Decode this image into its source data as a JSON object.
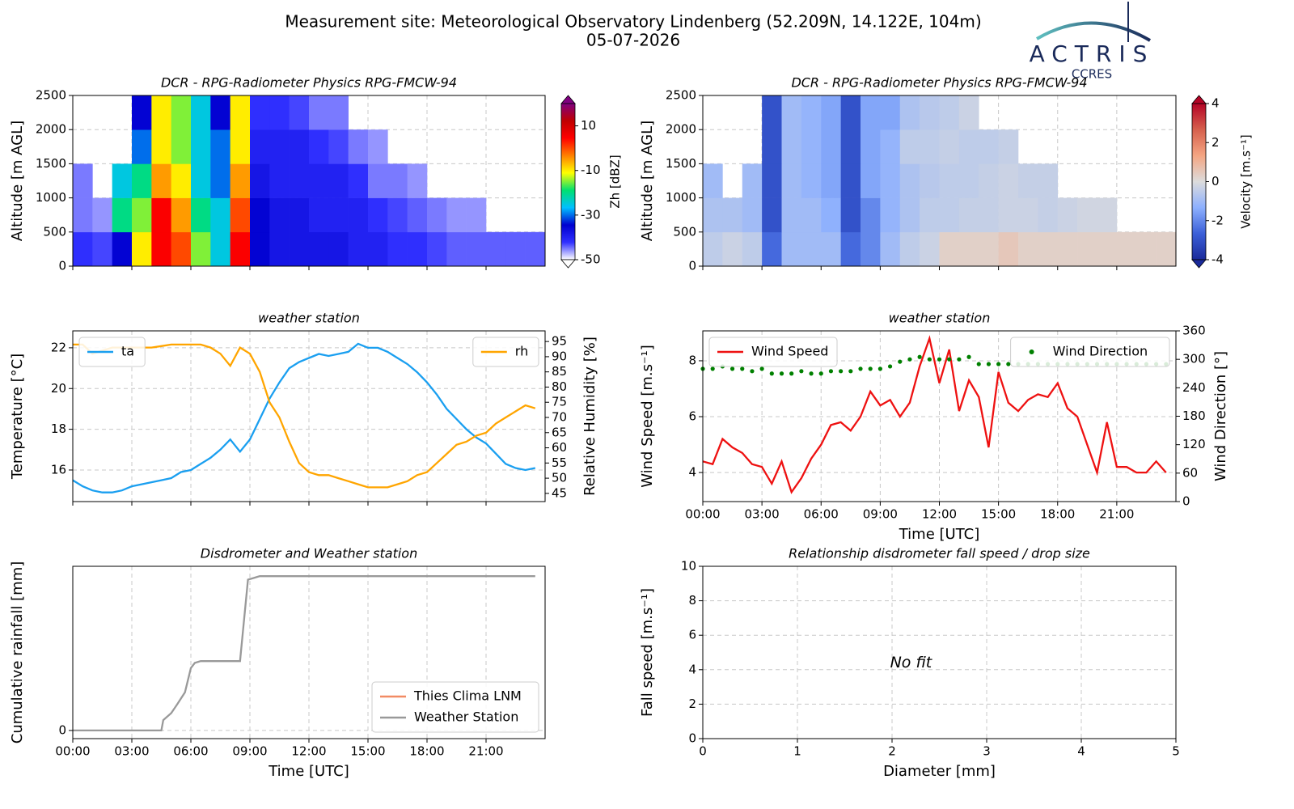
{
  "header": {
    "title": "Measurement site: Meteorological Observatory Lindenberg (52.209N, 14.122E, 104m)",
    "date": "05-07-2026",
    "logo": "ACTRIS",
    "logo_sub": "CCRES"
  },
  "chart_data": [
    {
      "type": "heatmap",
      "title": "DCR - RPG-Radiometer Physics RPG-FMCW-94",
      "ylabel": "Altitude [m AGL]",
      "x": [
        0.5,
        1.5,
        2.5,
        3.5,
        4.5,
        5.5,
        6.5,
        7.5,
        8.5,
        9.5,
        10.5,
        11.5,
        12.5,
        13.5,
        14.5,
        15.5,
        16.5,
        17.5,
        18.5,
        19.5,
        20.5,
        21.5,
        22.5,
        23.5
      ],
      "y": [
        250,
        750,
        1250,
        1750,
        2250
      ],
      "z": [
        [
          -42,
          -43,
          -35,
          -10,
          5,
          0,
          -15,
          -25,
          5,
          -35,
          -38,
          -38,
          -38,
          -38,
          -40,
          -40,
          -42,
          -42,
          -43,
          -44,
          -44,
          -44,
          -44,
          -44
        ],
        [
          -45,
          -46,
          -20,
          -15,
          5,
          -5,
          -20,
          -25,
          0,
          -35,
          -38,
          -38,
          -40,
          -40,
          -40,
          -42,
          -43,
          -44,
          -45,
          -46,
          -46,
          null,
          null,
          null
        ],
        [
          -45,
          null,
          -25,
          -20,
          -5,
          -10,
          -25,
          -30,
          -5,
          -38,
          -40,
          -40,
          -40,
          -40,
          -42,
          -45,
          -45,
          -46,
          null,
          null,
          null,
          null,
          null,
          null
        ],
        [
          null,
          null,
          null,
          -30,
          -10,
          -15,
          -25,
          -30,
          -10,
          -40,
          -40,
          -40,
          -42,
          -43,
          -45,
          -46,
          null,
          null,
          null,
          null,
          null,
          null,
          null,
          null
        ],
        [
          null,
          null,
          null,
          -35,
          -10,
          -15,
          -25,
          -35,
          -10,
          -42,
          -42,
          -43,
          -45,
          -45,
          null,
          null,
          null,
          null,
          null,
          null,
          null,
          null,
          null,
          null
        ]
      ],
      "xlim": [
        0,
        24
      ],
      "ylim": [
        0,
        2500
      ],
      "xticks": [
        0,
        3,
        6,
        9,
        12,
        15,
        18,
        21
      ],
      "xtick_labels": false,
      "yticks": [
        0,
        500,
        1000,
        1500,
        2000,
        2500
      ],
      "grid": true,
      "colorbar": {
        "label": "Zh [dBZ]",
        "clim": [
          -50,
          20
        ],
        "ticks": [
          -50,
          -30,
          -10,
          10
        ],
        "colors": [
          "#ffffff",
          "#3030ff",
          "#0000d0",
          "#00c0ff",
          "#00e070",
          "#ffff00",
          "#ff8000",
          "#ff0000",
          "#c00000",
          "#800080"
        ]
      }
    },
    {
      "type": "heatmap",
      "title": "DCR - RPG-Radiometer Physics RPG-FMCW-94",
      "ylabel": "Altitude [m AGL]",
      "x": [
        0.5,
        1.5,
        2.5,
        3.5,
        4.5,
        5.5,
        6.5,
        7.5,
        8.5,
        9.5,
        10.5,
        11.5,
        12.5,
        13.5,
        14.5,
        15.5,
        16.5,
        17.5,
        18.5,
        19.5,
        20.5,
        21.5,
        22.5,
        23.5
      ],
      "y": [
        250,
        750,
        1250,
        1750,
        2250
      ],
      "z": [
        [
          -0.5,
          -0.3,
          -0.5,
          -2.5,
          -1,
          -1,
          -1,
          -2.5,
          -2,
          -1,
          -0.5,
          -0.3,
          0.3,
          0.3,
          0.3,
          0.5,
          0.3,
          0.3,
          0.3,
          0.3,
          0.3,
          0.3,
          0.3,
          0.3
        ],
        [
          -0.8,
          -0.8,
          -1,
          -3,
          -1,
          -1,
          -1.3,
          -3,
          -2,
          -1.2,
          -0.8,
          -0.5,
          -0.5,
          -0.4,
          -0.4,
          -0.3,
          -0.3,
          -0.4,
          -0.3,
          -0.2,
          -0.2,
          null,
          null,
          null
        ],
        [
          -1,
          null,
          -1,
          -3,
          -1,
          -1.2,
          -1.5,
          -3,
          -1.5,
          -1.2,
          -0.8,
          -0.6,
          -0.5,
          -0.5,
          -0.4,
          -0.3,
          -0.4,
          -0.4,
          null,
          null,
          null,
          null,
          null,
          null
        ],
        [
          null,
          null,
          null,
          -3,
          -1,
          -1.2,
          -1.5,
          -3,
          -1.5,
          -1.2,
          -0.5,
          -0.5,
          -0.4,
          -0.5,
          -0.5,
          -0.4,
          null,
          null,
          null,
          null,
          null,
          null,
          null,
          null
        ],
        [
          null,
          null,
          null,
          -3,
          -1,
          -1.2,
          -1.5,
          -3,
          -1.5,
          -1.5,
          -0.8,
          -0.6,
          -0.5,
          -0.3,
          null,
          null,
          null,
          null,
          null,
          null,
          null,
          null,
          null,
          null
        ]
      ],
      "xlim": [
        0,
        24
      ],
      "ylim": [
        0,
        2500
      ],
      "xticks": [
        0,
        3,
        6,
        9,
        12,
        15,
        18,
        21
      ],
      "xtick_labels": false,
      "yticks": [
        0,
        500,
        1000,
        1500,
        2000,
        2500
      ],
      "grid": true,
      "colorbar": {
        "label": "Velocity [m.s⁻¹]",
        "clim": [
          -4,
          4
        ],
        "ticks": [
          -4,
          -2,
          0,
          2,
          4
        ],
        "colors": [
          "#1a2a9a",
          "#3b5fd8",
          "#8db0fe",
          "#dcdcdc",
          "#f4a582",
          "#d6604d",
          "#b40426"
        ]
      }
    },
    {
      "type": "line",
      "title": "weather station",
      "ylabel": "Temperature [°C]",
      "y2label": "Relative Humidity [%]",
      "x": [
        0,
        0.5,
        1,
        1.5,
        2,
        2.5,
        3,
        3.5,
        4,
        4.5,
        5,
        5.5,
        6,
        6.5,
        7,
        7.5,
        8,
        8.5,
        9,
        9.5,
        10,
        10.5,
        11,
        11.5,
        12,
        12.5,
        13,
        13.5,
        14,
        14.5,
        15,
        15.5,
        16,
        16.5,
        17,
        17.5,
        18,
        18.5,
        19,
        19.5,
        20,
        20.5,
        21,
        21.5,
        22,
        22.5,
        23,
        23.5
      ],
      "series": [
        {
          "name": "ta",
          "color": "#1a9ff0",
          "legend": "upper left",
          "values": [
            15.5,
            15.2,
            15.0,
            14.9,
            14.9,
            15.0,
            15.2,
            15.3,
            15.4,
            15.5,
            15.6,
            15.9,
            16.0,
            16.3,
            16.6,
            17.0,
            17.5,
            16.9,
            17.5,
            18.5,
            19.5,
            20.3,
            21.0,
            21.3,
            21.5,
            21.7,
            21.6,
            21.7,
            21.8,
            22.2,
            22.0,
            22.0,
            21.8,
            21.5,
            21.2,
            20.8,
            20.3,
            19.7,
            19.0,
            18.5,
            18.0,
            17.6,
            17.3,
            16.8,
            16.3,
            16.1,
            16.0,
            16.1
          ]
        },
        {
          "name": "rh",
          "color": "#ffa500",
          "legend": "upper right",
          "axis": "y2",
          "values": [
            94,
            94,
            91,
            92,
            93,
            93,
            93,
            93,
            93,
            93.5,
            94,
            94,
            94,
            94,
            93,
            91,
            87,
            93,
            91,
            85,
            75,
            70,
            62,
            55,
            52,
            51,
            51,
            50,
            49,
            48,
            47,
            47,
            47,
            48,
            49,
            51,
            52,
            55,
            58,
            61,
            62,
            64,
            65,
            68,
            70,
            72,
            74,
            73
          ]
        }
      ],
      "xlim": [
        0,
        24
      ],
      "ylim": [
        14.45,
        22.83
      ],
      "y2lim": [
        42.3,
        98.5
      ],
      "xticks": [
        0,
        3,
        6,
        9,
        12,
        15,
        18,
        21
      ],
      "xtick_labels": false,
      "yticks": [
        16,
        18,
        20,
        22
      ],
      "y2ticks": [
        45,
        50,
        55,
        60,
        65,
        70,
        75,
        80,
        85,
        90,
        95
      ],
      "grid": true
    },
    {
      "type": "line",
      "title": "weather station",
      "ylabel": "Wind Speed [m.s⁻¹]",
      "y2label": "Wind Direction [°]",
      "xlabel": "Time [UTC]",
      "x": [
        0,
        0.5,
        1,
        1.5,
        2,
        2.5,
        3,
        3.5,
        4,
        4.5,
        5,
        5.5,
        6,
        6.5,
        7,
        7.5,
        8,
        8.5,
        9,
        9.5,
        10,
        10.5,
        11,
        11.5,
        12,
        12.5,
        13,
        13.5,
        14,
        14.5,
        15,
        15.5,
        16,
        16.5,
        17,
        17.5,
        18,
        18.5,
        19,
        19.5,
        20,
        20.5,
        21,
        21.5,
        22,
        22.5,
        23,
        23.5
      ],
      "series": [
        {
          "name": "Wind Speed",
          "color": "#ee1111",
          "legend": "upper left",
          "values": [
            4.4,
            4.3,
            5.2,
            4.9,
            4.7,
            4.3,
            4.2,
            3.6,
            4.4,
            3.3,
            3.8,
            4.5,
            5.0,
            5.7,
            5.8,
            5.5,
            6.0,
            6.9,
            6.4,
            6.6,
            6.0,
            6.5,
            7.8,
            8.8,
            7.2,
            8.4,
            6.2,
            7.3,
            6.7,
            4.9,
            7.6,
            6.5,
            6.2,
            6.6,
            6.8,
            6.7,
            7.2,
            6.3,
            6.0,
            5.0,
            4.0,
            5.8,
            4.2,
            4.2,
            4.0,
            4.0,
            4.4,
            4.0
          ]
        },
        {
          "name": "Wind Direction",
          "color": "#008000",
          "legend": "upper right",
          "axis": "y2",
          "mark": "dot",
          "values": [
            280,
            280,
            285,
            280,
            280,
            275,
            280,
            270,
            270,
            270,
            275,
            270,
            270,
            275,
            275,
            275,
            280,
            280,
            280,
            285,
            295,
            300,
            305,
            300,
            300,
            300,
            300,
            305,
            290,
            290,
            290,
            290,
            290,
            290,
            290,
            290,
            290,
            290,
            290,
            290,
            290,
            290,
            290,
            290,
            290,
            290,
            290,
            290
          ]
        }
      ],
      "xlim": [
        0,
        24
      ],
      "ylim": [
        2.96,
        9.07
      ],
      "y2lim": [
        0,
        360
      ],
      "xticks": [
        {
          "value": 0,
          "label": "00:00"
        },
        {
          "value": 3,
          "label": "03:00"
        },
        {
          "value": 6,
          "label": "06:00"
        },
        {
          "value": 9,
          "label": "09:00"
        },
        {
          "value": 12,
          "label": "12:00"
        },
        {
          "value": 15,
          "label": "15:00"
        },
        {
          "value": 18,
          "label": "18:00"
        },
        {
          "value": 21,
          "label": "21:00"
        }
      ],
      "yticks": [
        4,
        6,
        8
      ],
      "y2ticks": [
        0,
        60,
        120,
        180,
        240,
        300,
        360
      ],
      "grid": true
    },
    {
      "type": "line",
      "title": "Disdrometer and Weather station",
      "ylabel": "Cumulative rainfall [mm]",
      "xlabel": "Time [UTC]",
      "legend": "lower right",
      "series": [
        {
          "name": "Thies Clima LNM",
          "color": "#f28b64",
          "x": [],
          "values": []
        },
        {
          "name": "Weather Station",
          "color": "#999999",
          "x": [
            0,
            4.5,
            4.6,
            5,
            5.3,
            5.7,
            6,
            6.2,
            6.5,
            8.5,
            8.9,
            9.2,
            9.5,
            23.5
          ],
          "values": [
            0,
            0,
            0.6,
            1.0,
            1.5,
            2.2,
            3.6,
            3.9,
            4.0,
            4.0,
            8.7,
            8.8,
            8.9,
            8.9
          ]
        }
      ],
      "xlim": [
        0,
        24
      ],
      "ylim": [
        -0.47,
        9.47
      ],
      "xticks": [
        {
          "value": 0,
          "label": "00:00"
        },
        {
          "value": 3,
          "label": "03:00"
        },
        {
          "value": 6,
          "label": "06:00"
        },
        {
          "value": 9,
          "label": "09:00"
        },
        {
          "value": 12,
          "label": "12:00"
        },
        {
          "value": 15,
          "label": "15:00"
        },
        {
          "value": 18,
          "label": "18:00"
        },
        {
          "value": 21,
          "label": "21:00"
        }
      ],
      "yticks": [
        0
      ],
      "grid": true
    },
    {
      "type": "scatter",
      "title": "Relationship disdrometer fall speed / drop size",
      "ylabel": "Fall speed [m.s⁻¹]",
      "xlabel": "Diameter [mm]",
      "annotation": "No fit",
      "series": [],
      "xlim": [
        0,
        5
      ],
      "ylim": [
        0,
        10
      ],
      "xticks": [
        0,
        1,
        2,
        3,
        4,
        5
      ],
      "yticks": [
        0,
        2,
        4,
        6,
        8,
        10
      ],
      "grid": true
    }
  ]
}
